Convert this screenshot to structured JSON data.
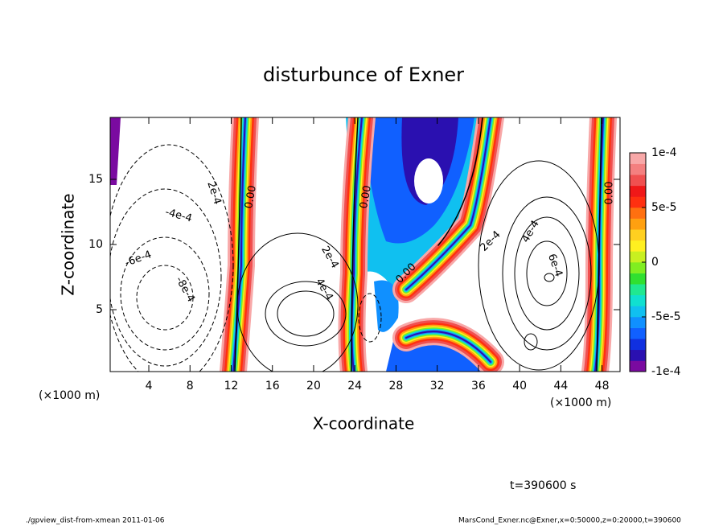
{
  "chart_data": {
    "type": "contour",
    "title": "disturbunce of Exner",
    "x_label": "X-coordinate",
    "y_label": "Z-coordinate",
    "x_unit_label": "(×1000 m)",
    "xlim": [
      0.25,
      49.75
    ],
    "ylim": [
      0.25,
      19.75
    ],
    "xticks": [
      4,
      8,
      12,
      16,
      20,
      24,
      28,
      32,
      36,
      40,
      44,
      48
    ],
    "yticks": [
      5,
      10,
      15
    ],
    "contour_labels": [
      "2e-4",
      "0.00",
      "-4e-4",
      "-6e-4",
      "-8e-4",
      "2e-4",
      "4e-4",
      "0.00",
      "0.00",
      "2e-4",
      "4e-4",
      "6e-4",
      "0.00"
    ],
    "colorbar": {
      "lim": [
        -0.0001,
        0.0001
      ],
      "ticks": [
        {
          "value": 0.0001,
          "label": "1e-4"
        },
        {
          "value": 5e-05,
          "label": "5e-5"
        },
        0,
        {
          "value": -5e-05,
          "label": "-5e-5"
        },
        {
          "value": -0.0001,
          "label": "-1e-4"
        }
      ],
      "colors": [
        "#7a0aa0",
        "#2a10b0",
        "#1030e0",
        "#1060ff",
        "#1090ff",
        "#10c0f0",
        "#10e0d0",
        "#20e890",
        "#30e030",
        "#80ee20",
        "#c8f020",
        "#fff020",
        "#ffd020",
        "#ffa010",
        "#ff7010",
        "#ff3010",
        "#f01818",
        "#f05050",
        "#f48080",
        "#f8a8a8"
      ]
    },
    "time_label": "t=390600 s",
    "footer_left": "./gpview_dist-from-xmean  2011-01-06",
    "footer_right": "MarsCond_Exner.nc@Exner,x=0:50000,z=0:20000,t=390600"
  }
}
